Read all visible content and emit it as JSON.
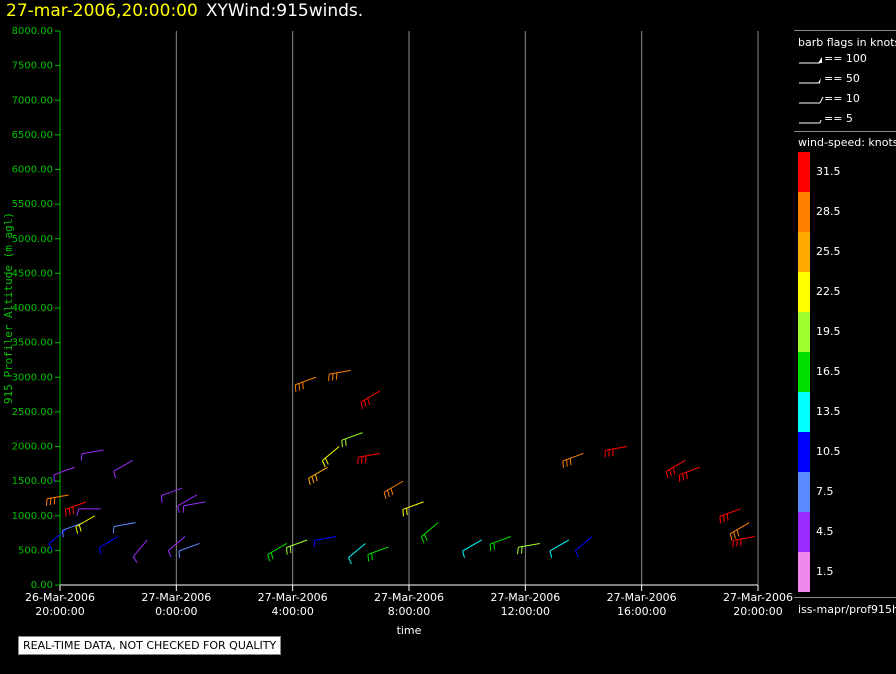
{
  "header": {
    "date_title": "27-mar-2006,20:00:00",
    "plot_title": "XYWind:915winds."
  },
  "notice": "REAL-TIME DATA, NOT CHECKED FOR QUALITY",
  "colors": {
    "axis": "#00c000",
    "ylabel": "#00c000",
    "grid": "#8c8c8c",
    "background": "#000000"
  },
  "legend": {
    "barb_title": "barb flags in knots",
    "barb_flags": [
      "== 100",
      "== 50",
      "== 10",
      "== 5"
    ],
    "speed_title": "wind-speed: knots",
    "speed_bins": [
      {
        "label": "31.5",
        "color": "#ff0000"
      },
      {
        "label": "28.5",
        "color": "#ff8000"
      },
      {
        "label": "25.5",
        "color": "#ffaa00"
      },
      {
        "label": "22.5",
        "color": "#ffff00"
      },
      {
        "label": "19.5",
        "color": "#a0ff30"
      },
      {
        "label": "16.5",
        "color": "#00e000"
      },
      {
        "label": "13.5",
        "color": "#00ffff"
      },
      {
        "label": "10.5",
        "color": "#0000ff"
      },
      {
        "label": "7.5",
        "color": "#5a8cff"
      },
      {
        "label": "4.5",
        "color": "#9a2bff"
      },
      {
        "label": "1.5",
        "color": "#ee88ee"
      }
    ],
    "source": "iss-mapr/prof915h"
  },
  "chart_data": {
    "type": "scatter",
    "title": "27-mar-2006,20:00:00  XYWind:915winds.",
    "xlabel": "time",
    "ylabel": "915 Profiler Altitude (m agl)",
    "x_ticks": [
      {
        "line1": "26-Mar-2006",
        "line2": "20:00:00"
      },
      {
        "line1": "27-Mar-2006",
        "line2": "0:00:00"
      },
      {
        "line1": "27-Mar-2006",
        "line2": "4:00:00"
      },
      {
        "line1": "27-Mar-2006",
        "line2": "8:00:00"
      },
      {
        "line1": "27-Mar-2006",
        "line2": "12:00:00"
      },
      {
        "line1": "27-Mar-2006",
        "line2": "16:00:00"
      },
      {
        "line1": "27-Mar-2006",
        "line2": "20:00:00"
      }
    ],
    "x_range_hours": [
      0,
      24
    ],
    "y_ticks": [
      "0.00",
      "500.00",
      "1000.00",
      "1500.00",
      "2000.00",
      "2500.00",
      "3000.00",
      "3500.00",
      "4000.00",
      "4500.00",
      "5000.00",
      "5500.00",
      "6000.00",
      "6500.00",
      "7000.00",
      "7500.00",
      "8000.00"
    ],
    "ylim": [
      0,
      8000
    ],
    "grid": "vertical lines at each time tick",
    "series": [
      {
        "hours": [
          0.5,
          1.5,
          2.5
        ],
        "altitude": [
          1700,
          1950,
          1800
        ],
        "speed": [
          4.5,
          4.5,
          4.5
        ],
        "dir": [
          250,
          260,
          240
        ]
      },
      {
        "hours": [
          0.2,
          0.8,
          1.4,
          2.0,
          2.6,
          3.0
        ],
        "altitude": [
          800,
          900,
          1100,
          700,
          900,
          650
        ],
        "speed": [
          10.5,
          7.5,
          4.5,
          10.5,
          7.5,
          4.5
        ],
        "dir": [
          230,
          250,
          270,
          240,
          260,
          220
        ]
      },
      {
        "hours": [
          0.3,
          0.9,
          1.2
        ],
        "altitude": [
          1300,
          1200,
          1000
        ],
        "speed": [
          28.5,
          31.5,
          22.5
        ],
        "dir": [
          260,
          250,
          240
        ]
      },
      {
        "hours": [
          4.2,
          4.7,
          5.0
        ],
        "altitude": [
          1400,
          1300,
          1200
        ],
        "speed": [
          4.5,
          4.5,
          4.5
        ],
        "dir": [
          250,
          240,
          260
        ]
      },
      {
        "hours": [
          4.3,
          4.8
        ],
        "altitude": [
          700,
          600
        ],
        "speed": [
          4.5,
          7.5
        ],
        "dir": [
          230,
          250
        ]
      },
      {
        "hours": [
          7.8,
          8.5,
          9.5,
          10.5,
          11.3
        ],
        "altitude": [
          600,
          650,
          700,
          600,
          550
        ],
        "speed": [
          16.5,
          19.5,
          10.5,
          13.5,
          16.5
        ],
        "dir": [
          240,
          250,
          260,
          230,
          250
        ]
      },
      {
        "hours": [
          9.2,
          9.6,
          10.4,
          11.0,
          11.8,
          12.5,
          13.0
        ],
        "altitude": [
          1700,
          2000,
          2200,
          1900,
          1500,
          1200,
          900
        ],
        "speed": [
          25.5,
          22.5,
          19.5,
          31.5,
          28.5,
          22.5,
          16.5
        ],
        "dir": [
          240,
          230,
          250,
          260,
          240,
          250,
          230
        ]
      },
      {
        "hours": [
          8.8,
          10.0,
          11.0
        ],
        "altitude": [
          3000,
          3100,
          2800
        ],
        "speed": [
          28.5,
          28.5,
          31.5
        ],
        "dir": [
          250,
          260,
          240
        ]
      },
      {
        "hours": [
          14.5,
          15.5,
          16.5,
          17.5,
          18.3
        ],
        "altitude": [
          650,
          700,
          600,
          650,
          700
        ],
        "speed": [
          13.5,
          16.5,
          19.5,
          13.5,
          10.5
        ],
        "dir": [
          240,
          250,
          260,
          240,
          230
        ]
      },
      {
        "hours": [
          23.4,
          23.7,
          23.9
        ],
        "altitude": [
          1100,
          900,
          700
        ],
        "speed": [
          31.5,
          28.5,
          31.5
        ],
        "dir": [
          250,
          240,
          260
        ]
      },
      {
        "hours": [
          18.0,
          19.5,
          21.5,
          22.0
        ],
        "altitude": [
          1900,
          2000,
          1800,
          1700
        ],
        "speed": [
          28.5,
          31.5,
          31.5,
          31.5
        ],
        "dir": [
          250,
          260,
          240,
          250
        ]
      }
    ]
  }
}
